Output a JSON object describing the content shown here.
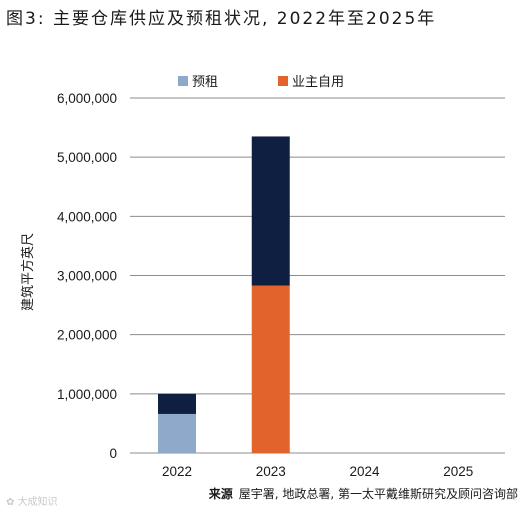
{
  "title": "图3: 主要仓库供应及预租状况, 2022年至2025年",
  "source_label": "来源",
  "source_text": "屋宇署, 地政总署, 第一太平戴维斯研究及顾问咨询部",
  "watermark": "大成知识",
  "chart_data": {
    "type": "bar",
    "stacked": true,
    "categories": [
      "2022",
      "2023",
      "2024",
      "2025"
    ],
    "series": [
      {
        "name": "预租",
        "color": "#8fa9cb",
        "values": [
          660000,
          0,
          0,
          0
        ]
      },
      {
        "name": "业主自用",
        "color": "#e2632b",
        "values": [
          0,
          2830000,
          0,
          0
        ]
      },
      {
        "name": "",
        "color": "#0f1f42",
        "values": [
          340000,
          2520000,
          0,
          0
        ]
      }
    ],
    "ylabel": "建筑平方英尺",
    "ylim": [
      0,
      6000000
    ],
    "yticks": [
      "0",
      "1,000,000",
      "2,000,000",
      "3,000,000",
      "4,000,000",
      "5,000,000",
      "6,000,000"
    ],
    "grid": false,
    "legend_position": "top"
  }
}
